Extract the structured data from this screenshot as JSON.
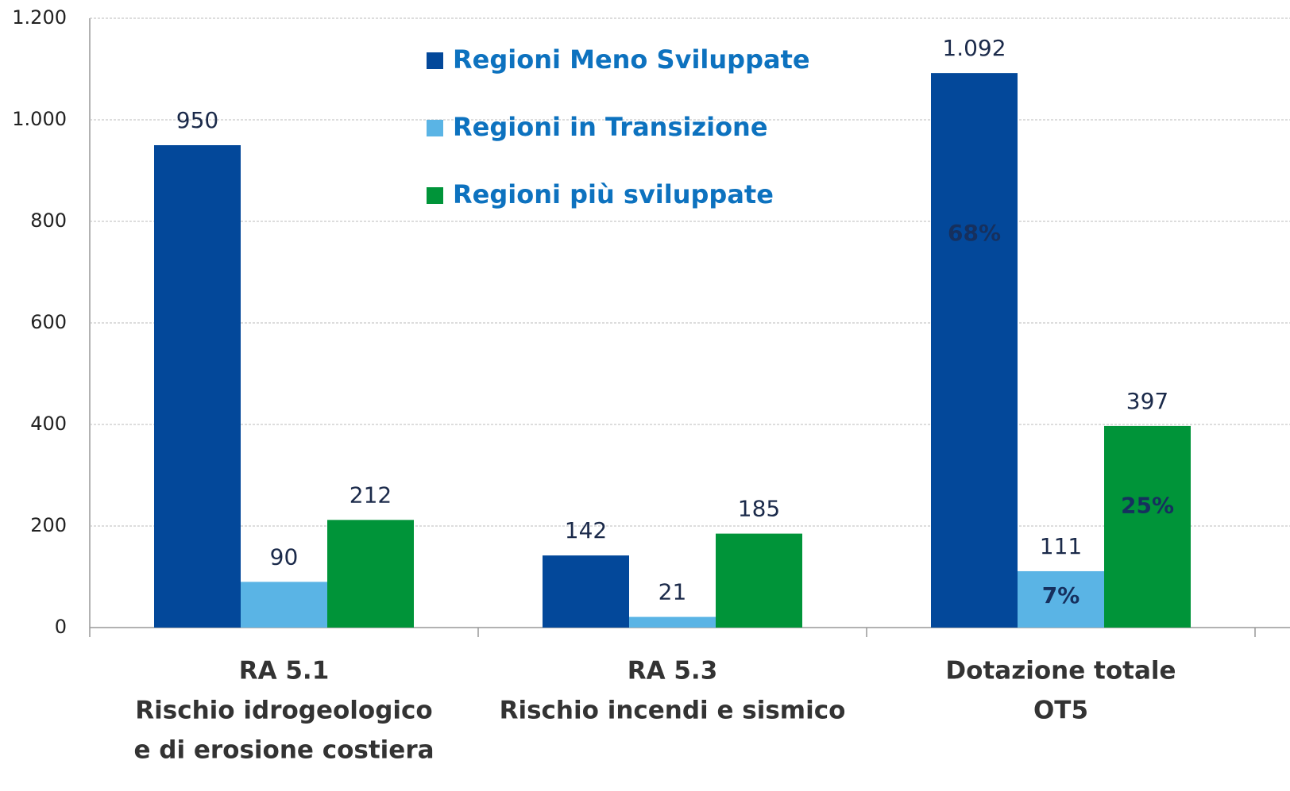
{
  "chart_data": {
    "type": "bar",
    "categories": [
      [
        "RA 5.1",
        "Rischio idrogeologico",
        "e di erosione costiera"
      ],
      [
        "RA 5.3",
        "Rischio incendi e sismico"
      ],
      [
        "Dotazione totale",
        "OT5"
      ]
    ],
    "series": [
      {
        "name": "Regioni Meno Sviluppate",
        "color": "#03489a",
        "values": [
          950,
          142,
          1092
        ],
        "value_labels": [
          "950",
          "142",
          "1.092"
        ]
      },
      {
        "name": "Regioni in Transizione",
        "color": "#5ab4e5",
        "values": [
          90,
          21,
          111
        ],
        "value_labels": [
          "90",
          "21",
          "111"
        ]
      },
      {
        "name": "Regioni più sviluppate",
        "color": "#009439",
        "values": [
          212,
          185,
          397
        ],
        "value_labels": [
          "212",
          "185",
          "397"
        ]
      }
    ],
    "share_labels": [
      "68%",
      "7%",
      "25%"
    ],
    "ylim": [
      0,
      1200
    ],
    "yticks": [
      0,
      200,
      400,
      600,
      800,
      {
        "value": 1000,
        "label": "1.000"
      },
      {
        "value": 1200,
        "label": "1.200"
      }
    ],
    "grid": true
  }
}
